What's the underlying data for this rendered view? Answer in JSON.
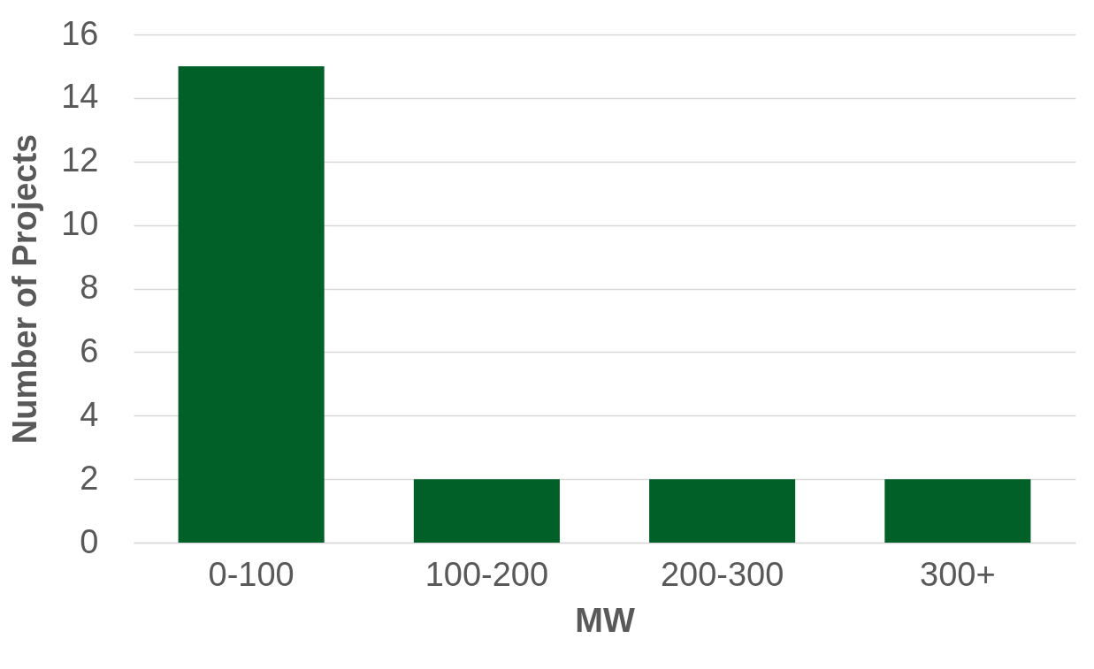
{
  "chart_data": {
    "type": "bar",
    "xlabel": "MW",
    "ylabel": "Number of Projects",
    "categories": [
      "0-100",
      "100-200",
      "200-300",
      "300+"
    ],
    "values": [
      15,
      2,
      2,
      2
    ],
    "color": "#006028",
    "ylim": [
      0,
      16
    ],
    "yticks": [
      0,
      2,
      4,
      6,
      8,
      10,
      12,
      14,
      16
    ],
    "grid": "y"
  }
}
